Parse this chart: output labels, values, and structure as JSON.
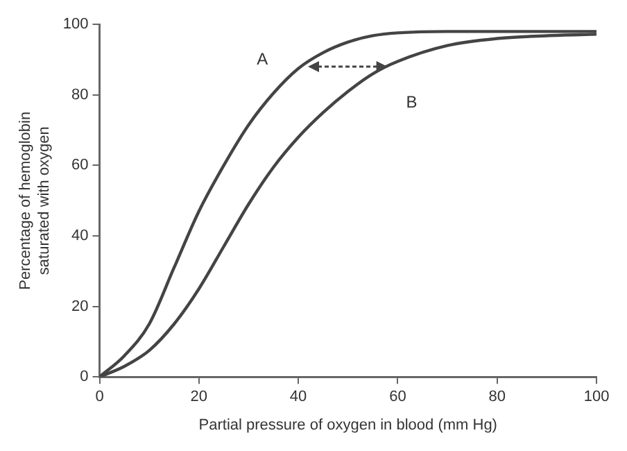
{
  "chart_data": {
    "type": "line",
    "xlabel": "Partial pressure of oxygen in blood (mm Hg)",
    "ylabel": "Percentage of hemoglobin saturated with oxygen",
    "x": [
      0,
      5,
      10,
      15,
      20,
      25,
      30,
      35,
      40,
      45,
      50,
      55,
      60,
      70,
      80,
      90,
      100
    ],
    "series": [
      {
        "name": "A",
        "color": "#444444",
        "values": [
          0,
          6,
          15,
          31,
          47,
          60,
          71.5,
          80.5,
          87.5,
          92,
          95,
          96.8,
          97.6,
          98,
          98,
          98,
          98
        ]
      },
      {
        "name": "B",
        "color": "#444444",
        "values": [
          0,
          3,
          7.5,
          15,
          25,
          37,
          49,
          59.5,
          68,
          75,
          81,
          86,
          89.5,
          94,
          96,
          96.8,
          97.2
        ]
      }
    ],
    "xlim": [
      0,
      100
    ],
    "xticks": [
      0,
      20,
      40,
      60,
      80,
      100
    ],
    "ylim": [
      0,
      100
    ],
    "yticks": [
      0,
      20,
      40,
      60,
      80,
      100
    ],
    "marker": "none",
    "line_style": "solid",
    "legend": false
  }
}
